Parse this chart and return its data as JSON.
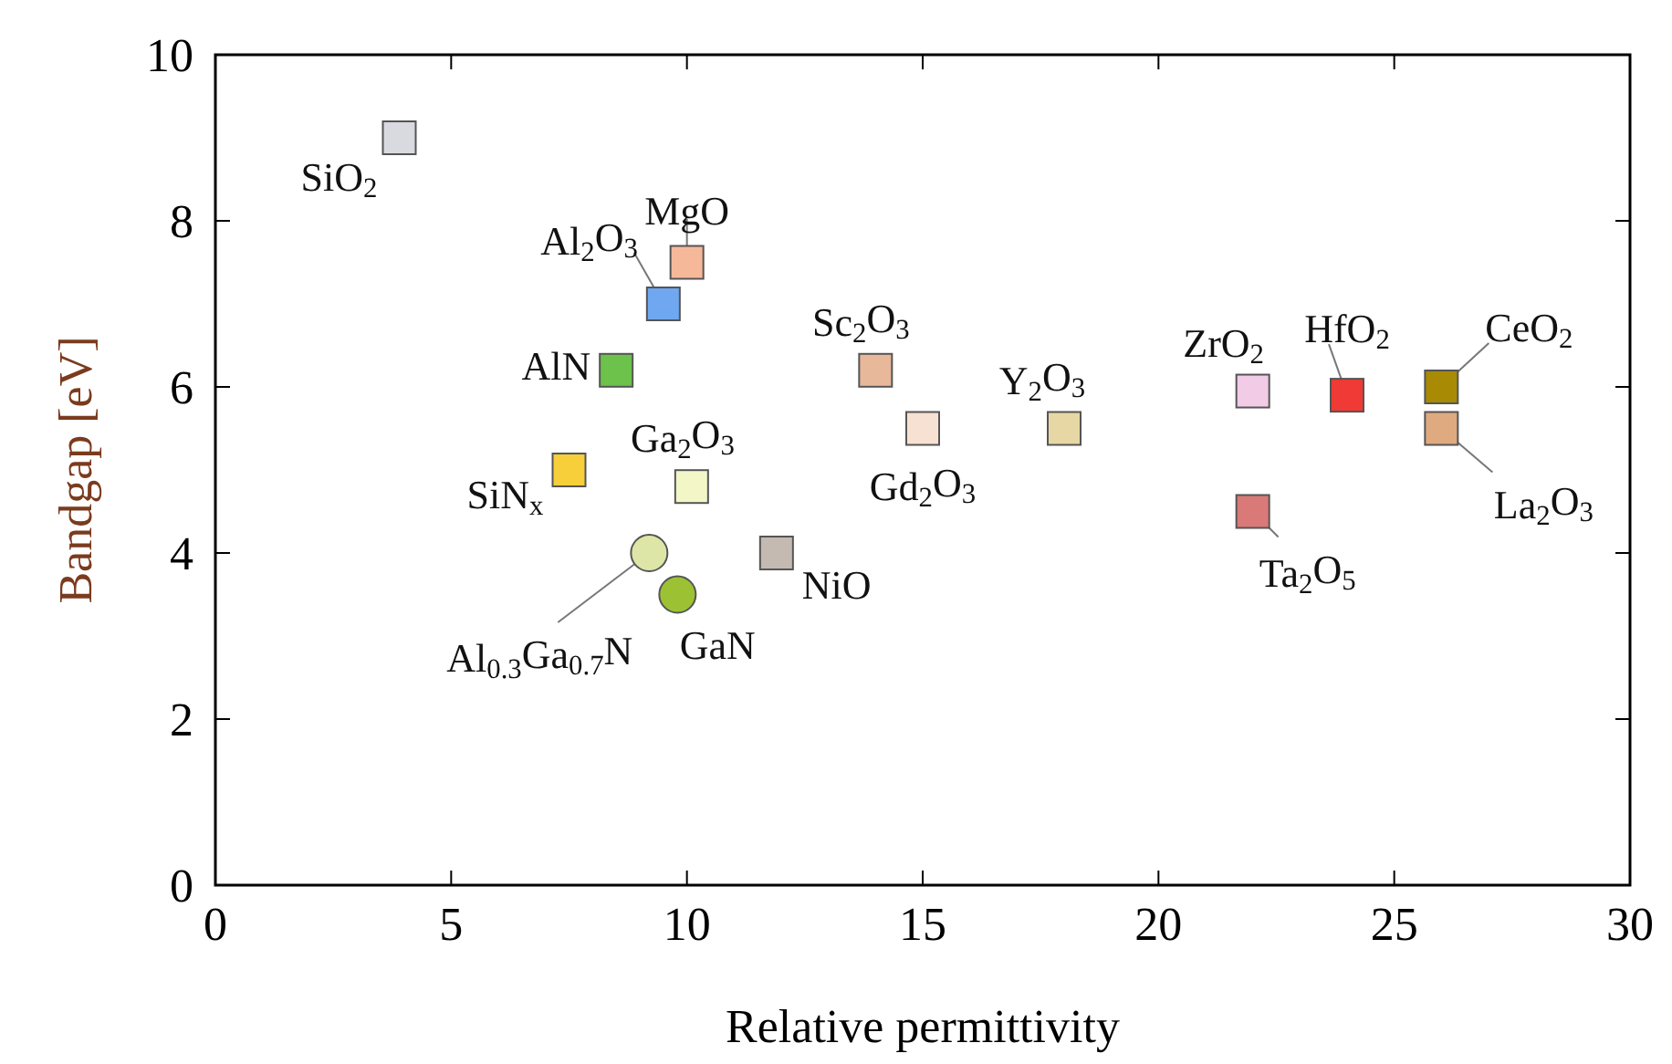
{
  "chart_data": {
    "type": "scatter",
    "xlabel": "Relative permittivity",
    "ylabel": "Bandgap [eV]",
    "xlim": [
      0,
      30
    ],
    "ylim": [
      0,
      10
    ],
    "xticks": [
      0,
      5,
      10,
      15,
      20,
      25,
      30
    ],
    "yticks": [
      0,
      2,
      4,
      6,
      8,
      10
    ],
    "grid": false,
    "marker": "square",
    "series": [
      {
        "name": "SiO$_{2}$",
        "color": "#d9d9e0",
        "x": [
          3.9
        ],
        "values": [
          9.0
        ]
      },
      {
        "name": "MgO",
        "color": "#f5b99a",
        "x": [
          10
        ],
        "values": [
          7.5
        ]
      },
      {
        "name": "Al$_{2}$O$_{3}$",
        "color": "#6fa8f0",
        "x": [
          9.5
        ],
        "values": [
          7.0
        ]
      },
      {
        "name": "AlN",
        "color": "#6cc24a",
        "x": [
          8.5
        ],
        "values": [
          6.2
        ]
      },
      {
        "name": "SiN$_{x}$",
        "color": "#f7cf3a",
        "x": [
          7.5
        ],
        "values": [
          5.0
        ]
      },
      {
        "name": "Ga$_{2}$O$_{3}$",
        "color": "#f3f7c8",
        "x": [
          10.1
        ],
        "values": [
          4.8
        ]
      },
      {
        "name": "Al$_{0.3}$Ga$_{0.7}$N",
        "color": "#dde6a6",
        "x": [
          9.2
        ],
        "values": [
          4.0
        ],
        "marker": "circle"
      },
      {
        "name": "GaN",
        "color": "#9cc234",
        "x": [
          9.8
        ],
        "values": [
          3.5
        ],
        "marker": "circle"
      },
      {
        "name": "NiO",
        "color": "#c4bab2",
        "x": [
          11.9
        ],
        "values": [
          4.0
        ]
      },
      {
        "name": "Sc$_{2}$O$_{3}$",
        "color": "#e8b89a",
        "x": [
          14
        ],
        "values": [
          6.2
        ]
      },
      {
        "name": "Gd$_{2}$O$_{3}$",
        "color": "#f7e1d2",
        "x": [
          15
        ],
        "values": [
          5.5
        ]
      },
      {
        "name": "Y$_{2}$O$_{3}$",
        "color": "#e6d7a4",
        "x": [
          18
        ],
        "values": [
          5.5
        ]
      },
      {
        "name": "ZrO$_{2}$",
        "color": "#f2cbe6",
        "x": [
          22
        ],
        "values": [
          5.95
        ]
      },
      {
        "name": "Ta$_{2}$O$_{5}$",
        "color": "#d97a78",
        "x": [
          22
        ],
        "values": [
          4.5
        ]
      },
      {
        "name": "HfO$_{2}$",
        "color": "#f03a35",
        "x": [
          24
        ],
        "values": [
          5.9
        ]
      },
      {
        "name": "CeO$_{2}$",
        "color": "#a88a05",
        "x": [
          26
        ],
        "values": [
          6.0
        ]
      },
      {
        "name": "La$_{2}$O$_{3}$",
        "color": "#e0aa80",
        "x": [
          26
        ],
        "values": [
          5.5
        ]
      }
    ]
  }
}
